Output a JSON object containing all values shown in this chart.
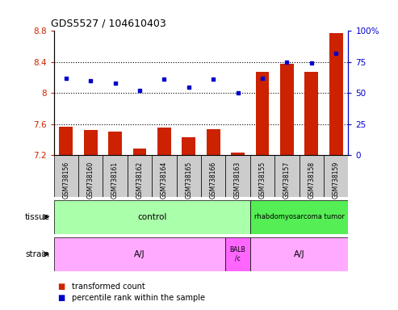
{
  "title": "GDS5527 / 104610403",
  "samples": [
    "GSM738156",
    "GSM738160",
    "GSM738161",
    "GSM738162",
    "GSM738164",
    "GSM738165",
    "GSM738166",
    "GSM738163",
    "GSM738155",
    "GSM738157",
    "GSM738158",
    "GSM738159"
  ],
  "bar_values": [
    7.56,
    7.52,
    7.5,
    7.28,
    7.55,
    7.43,
    7.53,
    7.23,
    8.27,
    8.38,
    8.27,
    8.77
  ],
  "dot_percentiles": [
    62,
    60,
    58,
    52,
    61,
    55,
    61,
    50,
    62,
    75,
    74,
    82
  ],
  "ylim_left": [
    7.2,
    8.8
  ],
  "ylim_right": [
    0,
    100
  ],
  "right_ticks": [
    0,
    25,
    50,
    75,
    100
  ],
  "right_tick_labels": [
    "0",
    "25",
    "50",
    "75",
    "100%"
  ],
  "left_ticks": [
    7.2,
    7.6,
    8.0,
    8.4,
    8.8
  ],
  "left_tick_labels": [
    "7.2",
    "7.6",
    "8",
    "8.4",
    "8.8"
  ],
  "hlines": [
    7.6,
    8.0,
    8.4
  ],
  "bar_color": "#CC2200",
  "dot_color": "#0000CC",
  "legend_bar_label": "transformed count",
  "legend_dot_label": "percentile rank within the sample",
  "tissue_row_label": "tissue",
  "strain_row_label": "strain",
  "tick_area_bg": "#CCCCCC",
  "ctrl_color": "#AAFFAA",
  "tumor_color": "#55EE55",
  "strain_aj_color": "#FFAAFF",
  "strain_balb_color": "#FF66FF",
  "n_ctrl": 8,
  "n_balb": 1,
  "n_tumor": 4
}
